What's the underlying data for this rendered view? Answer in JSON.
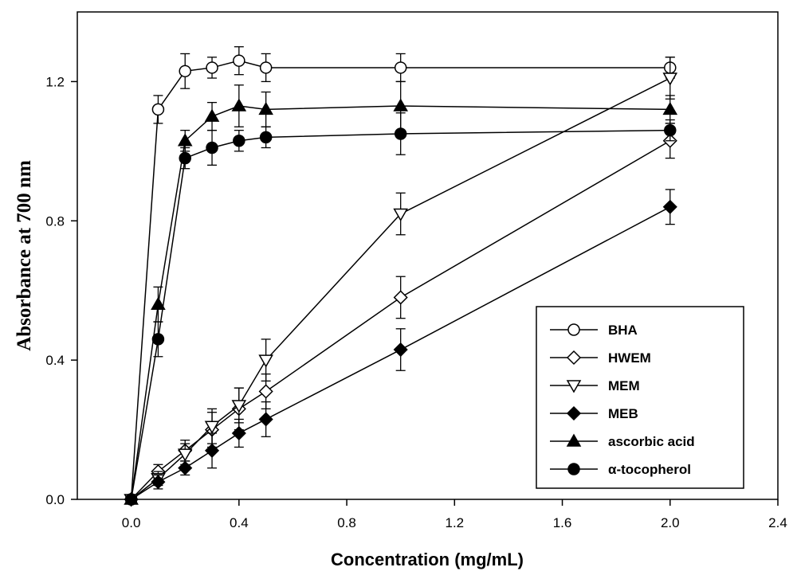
{
  "chart_data": {
    "type": "line",
    "xlabel": "Concentration (mg/mL)",
    "ylabel": "Absorbance at 700 nm",
    "xlim": [
      -0.2,
      2.4
    ],
    "ylim": [
      0.0,
      1.4
    ],
    "xticks": [
      0.0,
      0.4,
      0.8,
      1.2,
      1.6,
      2.0,
      2.4
    ],
    "yticks": [
      0.0,
      0.4,
      0.8,
      1.2
    ],
    "xtick_labels": [
      "0.0",
      "0.4",
      "0.8",
      "1.2",
      "1.6",
      "2.0",
      "2.4"
    ],
    "ytick_labels": [
      "0.0",
      "0.4",
      "0.8",
      "1.2"
    ],
    "grid": false,
    "legend_position": "bottom-right",
    "series": [
      {
        "name": "BHA",
        "marker": "circle-open",
        "x": [
          0,
          0.1,
          0.2,
          0.3,
          0.4,
          0.5,
          1.0,
          2.0
        ],
        "y": [
          0,
          1.12,
          1.23,
          1.24,
          1.26,
          1.24,
          1.24,
          1.24
        ],
        "err": [
          0,
          0.04,
          0.05,
          0.03,
          0.04,
          0.04,
          0.04,
          0.03
        ]
      },
      {
        "name": "HWEM",
        "marker": "diamond-open",
        "x": [
          0,
          0.1,
          0.2,
          0.3,
          0.4,
          0.5,
          1.0,
          2.0
        ],
        "y": [
          0,
          0.08,
          0.14,
          0.2,
          0.26,
          0.31,
          0.58,
          1.03
        ],
        "err": [
          0,
          0.02,
          0.03,
          0.05,
          0.06,
          0.05,
          0.06,
          0.05
        ]
      },
      {
        "name": "MEM",
        "marker": "triangle-down-open",
        "x": [
          0,
          0.1,
          0.2,
          0.3,
          0.4,
          0.5,
          1.0,
          2.0
        ],
        "y": [
          0,
          0.06,
          0.13,
          0.21,
          0.27,
          0.4,
          0.82,
          1.21
        ],
        "err": [
          0,
          0.02,
          0.03,
          0.05,
          0.05,
          0.06,
          0.06,
          0.06
        ]
      },
      {
        "name": "MEB",
        "marker": "diamond-filled",
        "x": [
          0,
          0.1,
          0.2,
          0.3,
          0.4,
          0.5,
          1.0,
          2.0
        ],
        "y": [
          0,
          0.05,
          0.09,
          0.14,
          0.19,
          0.23,
          0.43,
          0.84
        ],
        "err": [
          0,
          0.02,
          0.02,
          0.05,
          0.04,
          0.05,
          0.06,
          0.05
        ]
      },
      {
        "name": "ascorbic acid",
        "marker": "triangle-up-filled",
        "x": [
          0,
          0.1,
          0.2,
          0.3,
          0.4,
          0.5,
          1.0,
          2.0
        ],
        "y": [
          0,
          0.56,
          1.03,
          1.1,
          1.13,
          1.12,
          1.13,
          1.12
        ],
        "err": [
          0,
          0.05,
          0.03,
          0.04,
          0.06,
          0.05,
          0.07,
          0.04
        ]
      },
      {
        "name": "α-tocopherol",
        "marker": "circle-filled",
        "x": [
          0,
          0.1,
          0.2,
          0.3,
          0.4,
          0.5,
          1.0,
          2.0
        ],
        "y": [
          0,
          0.46,
          0.98,
          1.01,
          1.03,
          1.04,
          1.05,
          1.06
        ],
        "err": [
          0,
          0.05,
          0.03,
          0.05,
          0.03,
          0.03,
          0.06,
          0.03
        ]
      }
    ]
  }
}
